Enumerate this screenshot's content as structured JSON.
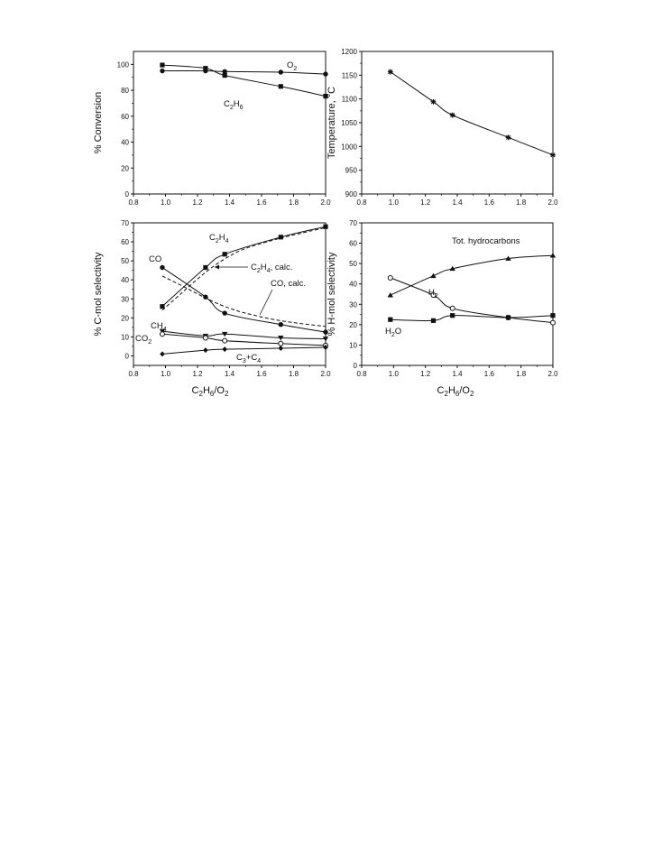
{
  "chart_data": [
    {
      "id": "conversion",
      "type": "line",
      "xlabel": "",
      "ylabel": "% Conversion",
      "xlim": [
        0.8,
        2.0
      ],
      "ylim": [
        0,
        110
      ],
      "xticks": [
        "0.8",
        "1.0",
        "1.2",
        "1.4",
        "1.6",
        "1.8",
        "2.0"
      ],
      "yticks": [
        "0",
        "20",
        "40",
        "60",
        "80",
        "100"
      ],
      "series": [
        {
          "name": "O2",
          "label_main": "O",
          "label_sub": "2",
          "marker": "circle-filled",
          "line": "solid",
          "x": [
            0.98,
            1.25,
            1.37,
            1.72,
            2.0
          ],
          "y": [
            95,
            95,
            94.5,
            94,
            92.5
          ]
        },
        {
          "name": "C2H6",
          "label_main": "C",
          "label_sub": "2",
          "label_main2": "H",
          "label_sub2": "6",
          "marker": "square-filled",
          "line": "solid",
          "x": [
            0.98,
            1.25,
            1.37,
            1.72,
            2.0
          ],
          "y": [
            99.5,
            97,
            91.5,
            83,
            75.5
          ]
        }
      ]
    },
    {
      "id": "temperature",
      "type": "line",
      "xlabel": "",
      "ylabel": "Temperature, °C",
      "xlim": [
        0.8,
        2.0
      ],
      "ylim": [
        900,
        1200
      ],
      "xticks": [
        "0.8",
        "1.0",
        "1.2",
        "1.4",
        "1.6",
        "1.8",
        "2.0"
      ],
      "yticks": [
        "900",
        "950",
        "1000",
        "1050",
        "1100",
        "1150",
        "1200"
      ],
      "series": [
        {
          "name": "",
          "marker": "star",
          "line": "solid",
          "x": [
            0.98,
            1.25,
            1.37,
            1.72,
            2.0
          ],
          "y": [
            1157,
            1094,
            1066,
            1019,
            982
          ]
        }
      ]
    },
    {
      "id": "c-selectivity",
      "type": "line",
      "xlabel": "C2H6/O2",
      "ylabel": "% C-mol selectivity",
      "xlim": [
        0.8,
        2.0
      ],
      "ylim": [
        -5,
        70
      ],
      "xticks": [
        "0.8",
        "1.0",
        "1.2",
        "1.4",
        "1.6",
        "1.8",
        "2.0"
      ],
      "yticks": [
        "0",
        "10",
        "20",
        "30",
        "40",
        "50",
        "60",
        "70"
      ],
      "series": [
        {
          "name": "C2H4",
          "marker": "square-filled",
          "line": "solid",
          "x": [
            0.98,
            1.25,
            1.37,
            1.72,
            2.0
          ],
          "y": [
            26,
            46.5,
            53.5,
            62.5,
            68
          ]
        },
        {
          "name": "C2H4, calc.",
          "marker": "none",
          "line": "dashed",
          "x": [
            0.98,
            1.1,
            1.25,
            1.37,
            1.5,
            1.72,
            2.0
          ],
          "y": [
            24,
            33,
            44,
            51,
            56.5,
            62,
            67.5
          ]
        },
        {
          "name": "CO",
          "marker": "circle-filled",
          "line": "solid",
          "x": [
            0.98,
            1.25,
            1.37,
            1.72,
            2.0
          ],
          "y": [
            46.5,
            31,
            22.5,
            16.5,
            12.5
          ]
        },
        {
          "name": "CO, calc.",
          "marker": "none",
          "line": "dashed",
          "x": [
            0.98,
            1.1,
            1.25,
            1.37,
            1.5,
            1.72,
            2.0
          ],
          "y": [
            42,
            37,
            30.5,
            26,
            22.5,
            18.5,
            15.5
          ]
        },
        {
          "name": "CH4",
          "marker": "triangle-down-filled",
          "line": "solid",
          "x": [
            0.98,
            1.25,
            1.37,
            1.72,
            2.0
          ],
          "y": [
            13,
            10.5,
            11.5,
            9.5,
            9
          ]
        },
        {
          "name": "CO2",
          "marker": "circle-open",
          "line": "solid",
          "x": [
            0.98,
            1.25,
            1.37,
            1.72,
            2.0
          ],
          "y": [
            11.5,
            9.5,
            8,
            6.5,
            5.5
          ]
        },
        {
          "name": "C3+C4",
          "marker": "diamond-filled",
          "line": "solid",
          "x": [
            0.98,
            1.25,
            1.37,
            1.72,
            2.0
          ],
          "y": [
            1,
            3,
            3.5,
            4,
            4.5
          ]
        }
      ]
    },
    {
      "id": "h-selectivity",
      "type": "line",
      "xlabel": "C2H6/O2",
      "ylabel": "% H-mol selectivity",
      "xlim": [
        0.8,
        2.0
      ],
      "ylim": [
        0,
        70
      ],
      "xticks": [
        "0.8",
        "1.0",
        "1.2",
        "1.4",
        "1.6",
        "1.8",
        "2.0"
      ],
      "yticks": [
        "0",
        "10",
        "20",
        "30",
        "40",
        "50",
        "60",
        "70"
      ],
      "series": [
        {
          "name": "Tot. hydrocarbons",
          "marker": "triangle-up-filled",
          "line": "solid",
          "x": [
            0.98,
            1.25,
            1.37,
            1.72,
            2.0
          ],
          "y": [
            34.5,
            44,
            47.5,
            52.5,
            54
          ]
        },
        {
          "name": "H2",
          "marker": "circle-open",
          "line": "solid",
          "x": [
            0.98,
            1.25,
            1.37,
            1.72,
            2.0
          ],
          "y": [
            43,
            34.5,
            28,
            23.5,
            21
          ]
        },
        {
          "name": "H2O",
          "marker": "square-filled",
          "line": "solid",
          "x": [
            0.98,
            1.25,
            1.37,
            1.72,
            2.0
          ],
          "y": [
            22.5,
            22,
            24.5,
            23.5,
            24.5
          ]
        }
      ]
    }
  ]
}
